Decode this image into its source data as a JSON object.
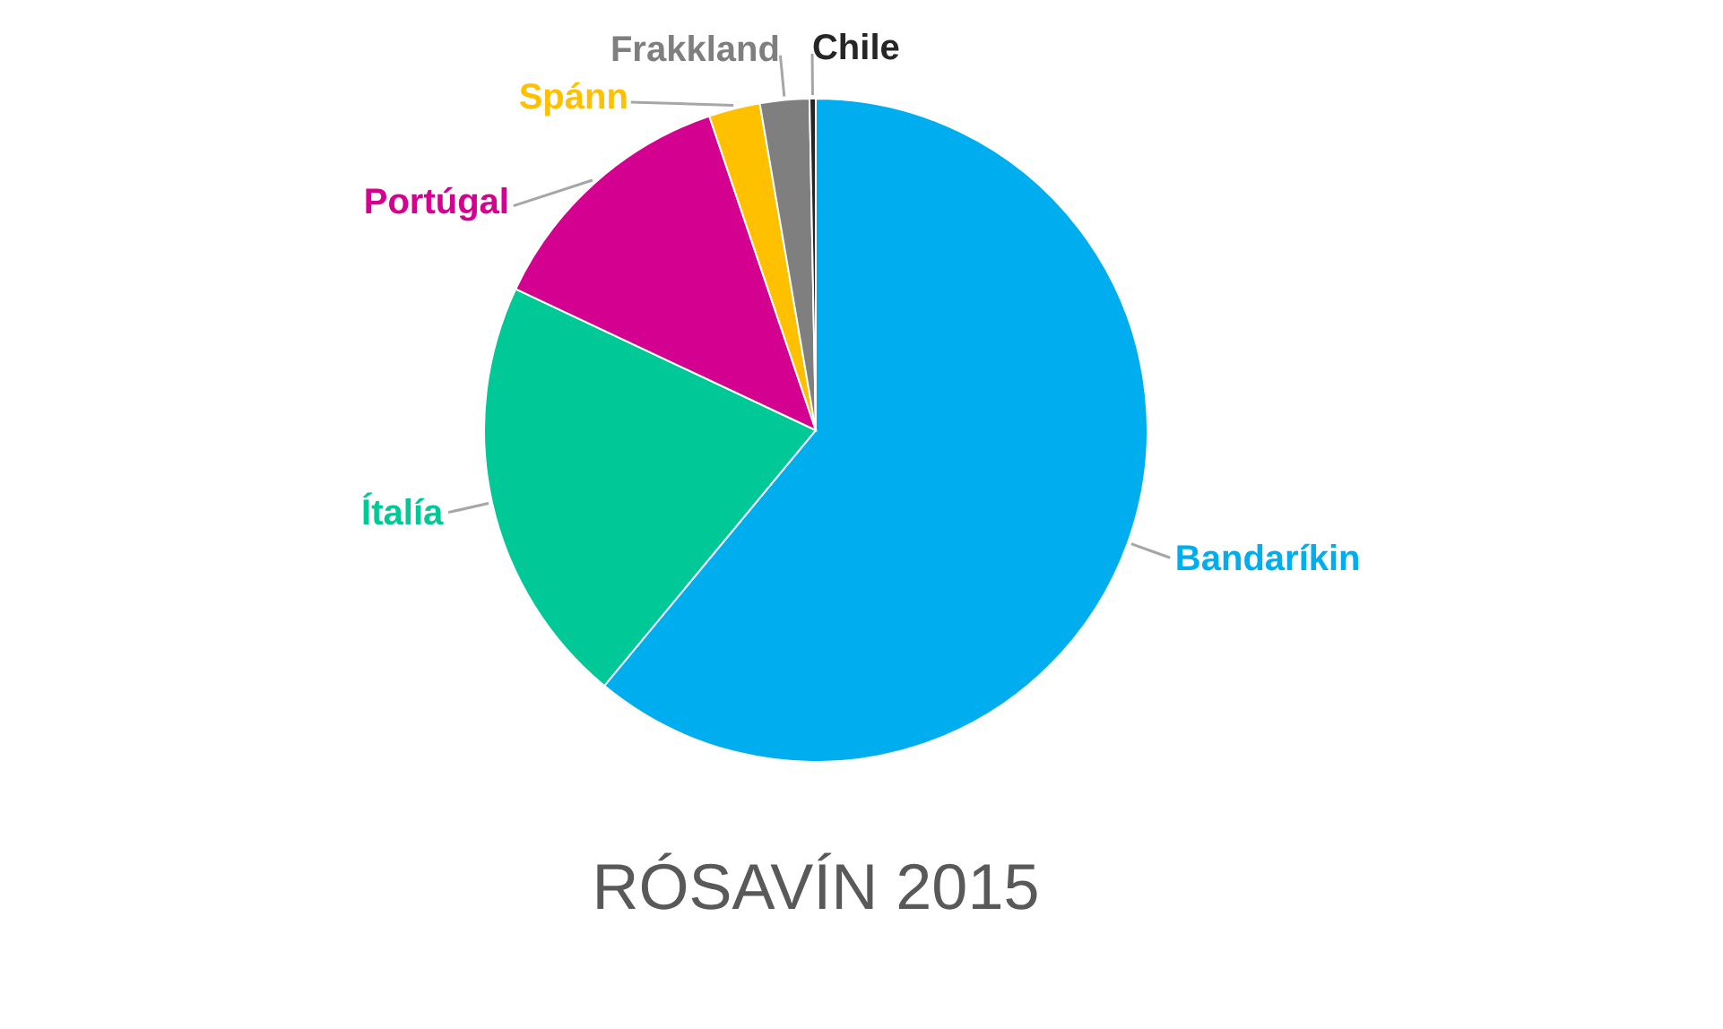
{
  "chart_data": {
    "type": "pie",
    "title": "RÓSAVÍN 2015",
    "categories": [
      "Bandaríkin",
      "Ítalía",
      "Portúgal",
      "Spánn",
      "Frakkland",
      "Chile"
    ],
    "values": [
      61,
      21,
      12.8,
      2.5,
      2.4,
      0.3
    ],
    "colors": [
      "#00aeef",
      "#00c896",
      "#d4008f",
      "#ffc000",
      "#7f7f7f",
      "#262626"
    ]
  }
}
